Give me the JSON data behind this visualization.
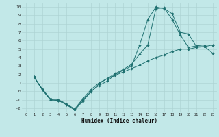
{
  "xlabel": "Humidex (Indice chaleur)",
  "xlim": [
    -0.5,
    23.5
  ],
  "ylim": [
    -2.5,
    10.5
  ],
  "xticks": [
    0,
    1,
    2,
    3,
    4,
    5,
    6,
    7,
    8,
    9,
    10,
    11,
    12,
    13,
    14,
    15,
    16,
    17,
    18,
    19,
    20,
    21,
    22,
    23
  ],
  "yticks": [
    -2,
    -1,
    0,
    1,
    2,
    3,
    4,
    5,
    6,
    7,
    8,
    9,
    10
  ],
  "bg_color": "#c2e8e8",
  "grid_color": "#aed4d4",
  "line_color": "#1e7070",
  "line1_x": [
    1,
    2,
    3,
    4,
    5,
    6,
    7,
    8,
    9,
    10,
    11,
    12,
    13,
    14,
    15,
    16,
    17,
    18,
    19,
    20,
    21,
    22,
    23
  ],
  "line1_y": [
    1.7,
    0.2,
    -1.0,
    -1.1,
    -1.6,
    -2.2,
    -1.0,
    -0.1,
    0.9,
    1.5,
    2.1,
    2.6,
    3.2,
    4.4,
    5.5,
    9.8,
    9.9,
    8.5,
    6.7,
    5.2,
    5.4,
    5.5,
    5.5
  ],
  "line2_x": [
    1,
    2,
    3,
    4,
    5,
    6,
    7,
    8,
    9,
    10,
    11,
    12,
    13,
    14,
    15,
    16,
    17,
    18,
    19,
    20,
    21,
    22,
    23
  ],
  "line2_y": [
    1.7,
    0.2,
    -1.0,
    -1.1,
    -1.6,
    -2.2,
    -1.2,
    0.0,
    0.7,
    1.2,
    2.0,
    2.5,
    3.0,
    5.5,
    8.5,
    10.0,
    9.8,
    9.2,
    7.0,
    6.8,
    5.3,
    5.3,
    5.5
  ],
  "line3_x": [
    1,
    2,
    3,
    4,
    5,
    6,
    7,
    8,
    9,
    10,
    11,
    12,
    13,
    14,
    15,
    16,
    17,
    18,
    19,
    20,
    21,
    22,
    23
  ],
  "line3_y": [
    1.7,
    0.3,
    -0.9,
    -1.0,
    -1.5,
    -2.1,
    -0.9,
    0.2,
    1.0,
    1.5,
    1.9,
    2.3,
    2.7,
    3.1,
    3.6,
    4.0,
    4.3,
    4.7,
    5.0,
    5.0,
    5.2,
    5.3,
    4.5
  ]
}
